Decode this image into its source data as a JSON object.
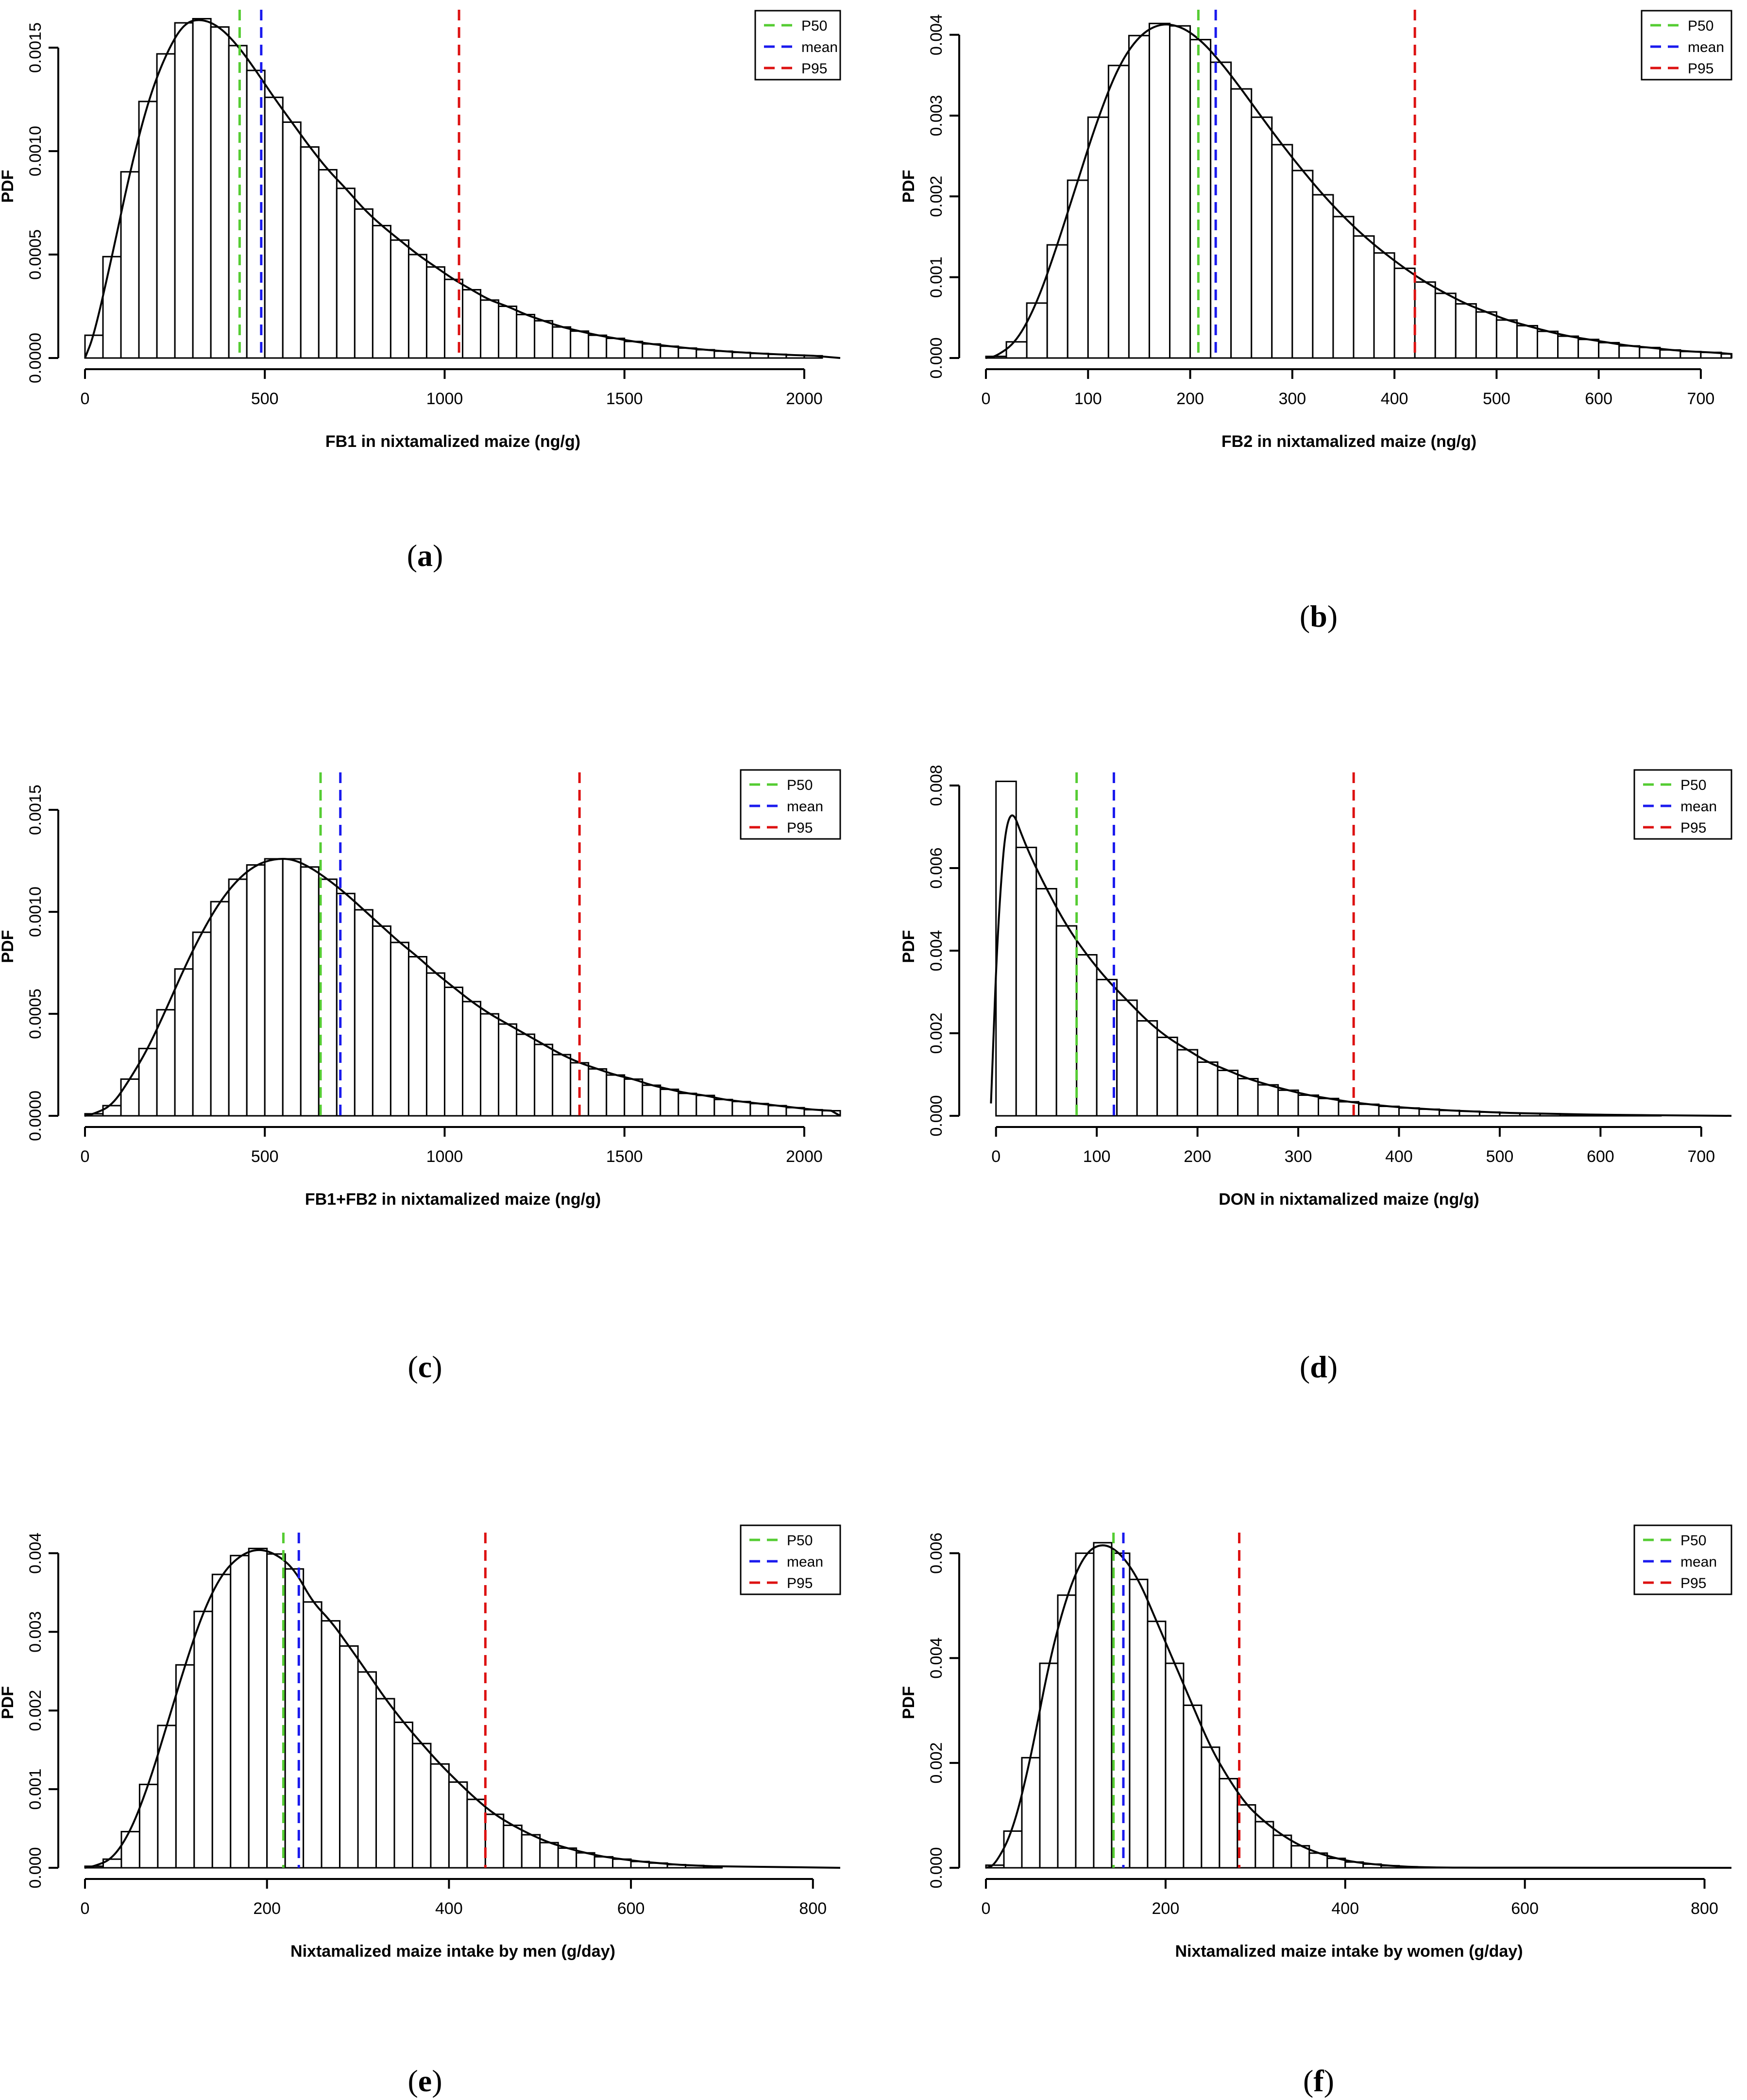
{
  "colors": {
    "p50": "#55cc33",
    "mean": "#1a1aee",
    "p95": "#dd1111"
  },
  "legend_labels": [
    "P50",
    "mean",
    "P95"
  ],
  "chart_data": [
    {
      "id": "a",
      "panel_label": "a",
      "type": "histogram",
      "xlabel": "FB1 in nixtamalized maize (ng/g)",
      "ylabel": "PDF",
      "xlim": [
        0,
        2100
      ],
      "ylim": [
        0,
        0.00166
      ],
      "xticks": [
        0,
        500,
        1000,
        1500,
        2000
      ],
      "xtick_labels": [
        "0",
        "500",
        "1000",
        "1500",
        "2000"
      ],
      "yticks": [
        0,
        0.0005,
        0.001,
        0.0015
      ],
      "ytick_labels": [
        "0.0000",
        "0.0005",
        "0.0010",
        "0.0015"
      ],
      "bin_width": 50,
      "values": [
        0.00011,
        0.00049,
        0.0009,
        0.00124,
        0.00147,
        0.00162,
        0.00164,
        0.0016,
        0.00151,
        0.00139,
        0.00126,
        0.00114,
        0.00102,
        0.00091,
        0.00082,
        0.00072,
        0.00064,
        0.00057,
        0.0005,
        0.00044,
        0.00038,
        0.00033,
        0.00028,
        0.00025,
        0.00021,
        0.00018,
        0.00015,
        0.00013,
        0.00011,
        9.5e-05,
        8e-05,
        6.8e-05,
        5.7e-05,
        4.8e-05,
        4e-05,
        3.3e-05,
        2.7e-05,
        2.2e-05,
        1.8e-05,
        1.4e-05,
        1.1e-05
      ],
      "p50": 430,
      "mean": 490,
      "p95": 1040
    },
    {
      "id": "b",
      "panel_label": "b",
      "type": "histogram",
      "xlabel": "FB2 in nixtamalized maize (ng/g)",
      "ylabel": "PDF",
      "xlim": [
        0,
        730
      ],
      "ylim": [
        0,
        0.00425
      ],
      "xticks": [
        0,
        100,
        200,
        300,
        400,
        500,
        600,
        700
      ],
      "xtick_labels": [
        "0",
        "100",
        "200",
        "300",
        "400",
        "500",
        "600",
        "700"
      ],
      "yticks": [
        0,
        0.001,
        0.002,
        0.003,
        0.004
      ],
      "ytick_labels": [
        "0.000",
        "0.001",
        "0.002",
        "0.003",
        "0.004"
      ],
      "bin_width": 20,
      "values": [
        2e-05,
        0.0002,
        0.00068,
        0.0014,
        0.0022,
        0.00298,
        0.00362,
        0.00399,
        0.00414,
        0.00411,
        0.00394,
        0.00366,
        0.00333,
        0.00298,
        0.00264,
        0.00232,
        0.00202,
        0.00175,
        0.00151,
        0.0013,
        0.00111,
        0.00094,
        0.0008,
        0.00067,
        0.00057,
        0.00047,
        0.0004,
        0.00033,
        0.00027,
        0.00023,
        0.00019,
        0.00015,
        0.00013,
        0.0001,
        8e-05,
        7e-05,
        5e-05
      ],
      "p50": 208,
      "mean": 225,
      "p95": 420
    },
    {
      "id": "c",
      "panel_label": "c",
      "type": "histogram",
      "xlabel": "FB1+FB2 in nixtamalized maize (ng/g)",
      "ylabel": "PDF",
      "xlim": [
        0,
        2100
      ],
      "ylim": [
        0,
        0.00166
      ],
      "xticks": [
        0,
        500,
        1000,
        1500,
        2000
      ],
      "xtick_labels": [
        "0",
        "500",
        "1000",
        "1500",
        "2000"
      ],
      "yticks": [
        0,
        0.0005,
        0.001,
        0.0015
      ],
      "ytick_labels": [
        "0.0000",
        "0.0005",
        "0.0010",
        "0.0015"
      ],
      "bin_width": 50,
      "values": [
        1e-05,
        5e-05,
        0.00018,
        0.00033,
        0.00052,
        0.00072,
        0.0009,
        0.00105,
        0.00116,
        0.00123,
        0.00126,
        0.00126,
        0.00122,
        0.00116,
        0.00109,
        0.00101,
        0.00093,
        0.00085,
        0.00078,
        0.0007,
        0.00063,
        0.00056,
        0.0005,
        0.00045,
        0.0004,
        0.00035,
        0.0003,
        0.00026,
        0.00023,
        0.0002,
        0.00018,
        0.00015,
        0.00013,
        0.00011,
        0.0001,
        8e-05,
        7e-05,
        6e-05,
        5e-05,
        4e-05,
        3e-05,
        2.5e-05
      ],
      "p50": 655,
      "mean": 710,
      "p95": 1375
    },
    {
      "id": "d",
      "panel_label": "d",
      "type": "histogram",
      "xlabel": "DON in nixtamalized maize (ng/g)",
      "ylabel": "PDF",
      "xlim": [
        -10,
        730
      ],
      "ylim": [
        0,
        0.0082
      ],
      "xticks": [
        0,
        100,
        200,
        300,
        400,
        500,
        600,
        700
      ],
      "xtick_labels": [
        "0",
        "100",
        "200",
        "300",
        "400",
        "500",
        "600",
        "700"
      ],
      "yticks": [
        0,
        0.002,
        0.004,
        0.006,
        0.008
      ],
      "ytick_labels": [
        "0.000",
        "0.002",
        "0.004",
        "0.006",
        "0.008"
      ],
      "bin_width": 20,
      "values": [
        0.0081,
        0.0065,
        0.0055,
        0.0046,
        0.0039,
        0.0033,
        0.0028,
        0.0023,
        0.0019,
        0.0016,
        0.0013,
        0.0011,
        0.0009,
        0.00075,
        0.00062,
        0.0005,
        0.00042,
        0.00034,
        0.00028,
        0.00023,
        0.00019,
        0.00016,
        0.00013,
        0.00011,
        9e-05,
        7e-05,
        6e-05,
        5e-05,
        4e-05,
        3e-05,
        2.5e-05,
        2e-05,
        1.5e-05
      ],
      "p50": 80,
      "mean": 117,
      "p95": 355
    },
    {
      "id": "e",
      "panel_label": "e",
      "type": "histogram",
      "xlabel": "Nixtamalized maize intake by men (g/day)",
      "ylabel": "PDF",
      "xlim": [
        0,
        830
      ],
      "ylim": [
        0,
        0.0042
      ],
      "xticks": [
        0,
        200,
        400,
        600,
        800
      ],
      "xtick_labels": [
        "0",
        "200",
        "400",
        "600",
        "800"
      ],
      "yticks": [
        0,
        0.001,
        0.002,
        0.003,
        0.004
      ],
      "ytick_labels": [
        "0.000",
        "0.001",
        "0.002",
        "0.003",
        "0.004"
      ],
      "bin_width": 20,
      "values": [
        2e-05,
        0.00011,
        0.00046,
        0.00106,
        0.00181,
        0.00258,
        0.00326,
        0.00373,
        0.00397,
        0.00406,
        0.00399,
        0.0038,
        0.00338,
        0.00314,
        0.00282,
        0.00249,
        0.00215,
        0.00185,
        0.00158,
        0.00132,
        0.00109,
        0.00087,
        0.00068,
        0.00054,
        0.00042,
        0.00032,
        0.00025,
        0.00019,
        0.00014,
        0.00011,
        8e-05,
        6e-05,
        4e-05,
        3e-05,
        2e-05
      ],
      "p50": 218,
      "mean": 235,
      "p95": 440
    },
    {
      "id": "f",
      "panel_label": "f",
      "type": "histogram",
      "xlabel": "Nixtamalized maize intake by women (g/day)",
      "ylabel": "PDF",
      "xlim": [
        0,
        830
      ],
      "ylim": [
        0,
        0.0063
      ],
      "xticks": [
        0,
        200,
        400,
        600,
        800
      ],
      "xtick_labels": [
        "0",
        "200",
        "400",
        "600",
        "800"
      ],
      "yticks": [
        0,
        0.002,
        0.004,
        0.006
      ],
      "ytick_labels": [
        "0.000",
        "0.002",
        "0.004",
        "0.006"
      ],
      "bin_width": 20,
      "values": [
        5e-05,
        0.0007,
        0.0021,
        0.0039,
        0.0052,
        0.006,
        0.0062,
        0.006,
        0.0055,
        0.0047,
        0.0039,
        0.0031,
        0.0023,
        0.0017,
        0.0012,
        0.00088,
        0.00062,
        0.00042,
        0.00028,
        0.00018,
        0.00011,
        7e-05,
        4e-05,
        2e-05,
        1e-05,
        5e-06,
        3e-06
      ],
      "p50": 142,
      "mean": 153,
      "p95": 282
    }
  ]
}
